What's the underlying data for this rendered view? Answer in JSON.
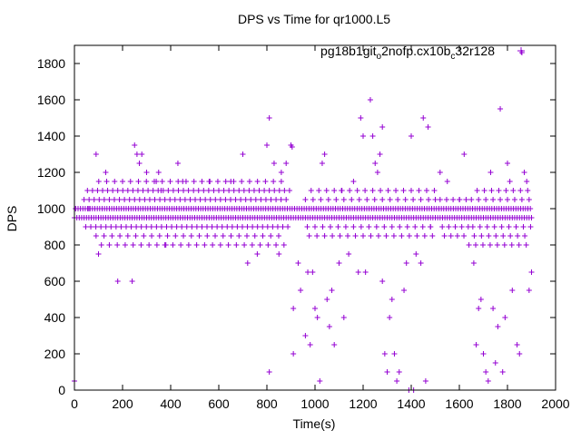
{
  "chart_data": {
    "type": "scatter",
    "title": "DPS vs Time for qr1000.L5",
    "xlabel": "Time(s)",
    "ylabel": "DPS",
    "xlim": [
      0,
      2000
    ],
    "ylim": [
      0,
      1900
    ],
    "x_ticks": [
      0,
      200,
      400,
      600,
      800,
      1000,
      1200,
      1400,
      1600,
      1800,
      2000
    ],
    "y_ticks": [
      0,
      200,
      400,
      600,
      800,
      1000,
      1200,
      1400,
      1600,
      1800
    ],
    "grid": false,
    "legend_position": "top-right",
    "marker": "plus",
    "series": [
      {
        "name": "pg18b1git_o2nofp.cx10b_c32r128",
        "legend_base": "pg18b1git",
        "legend_segments": [
          {
            "text": "o",
            "sub": true
          },
          {
            "text": "2nofp.cx10b",
            "sub": false
          },
          {
            "text": "c",
            "sub": true
          },
          {
            "text": "32r128",
            "sub": false
          }
        ],
        "color": "#9400D3",
        "bands": [
          {
            "x_start": 0,
            "x_end": 1900,
            "step": 5,
            "values": [
              950,
              1000
            ]
          },
          {
            "x_start": 40,
            "x_end": 900,
            "step": 7,
            "values": [
              1050,
              900,
              1100
            ]
          },
          {
            "x_start": 90,
            "x_end": 880,
            "step": 11,
            "values": [
              850,
              1150,
              800
            ]
          },
          {
            "x_start": 960,
            "x_end": 1500,
            "step": 8,
            "values": [
              1050,
              900,
              850,
              1100
            ]
          },
          {
            "x_start": 1520,
            "x_end": 1640,
            "step": 9,
            "values": [
              1050,
              900,
              850
            ]
          },
          {
            "x_start": 1650,
            "x_end": 1900,
            "step": 6,
            "values": [
              1050,
              900,
              850,
              800,
              1100
            ]
          }
        ],
        "points": [
          [
            0,
            50
          ],
          [
            5,
            1000
          ],
          [
            60,
            1000
          ],
          [
            90,
            1300
          ],
          [
            100,
            750
          ],
          [
            130,
            1200
          ],
          [
            180,
            600
          ],
          [
            240,
            600
          ],
          [
            250,
            1350
          ],
          [
            260,
            1300
          ],
          [
            270,
            1250
          ],
          [
            280,
            1300
          ],
          [
            300,
            1200
          ],
          [
            340,
            1150
          ],
          [
            350,
            1200
          ],
          [
            360,
            1100
          ],
          [
            380,
            800
          ],
          [
            430,
            1250
          ],
          [
            450,
            1150
          ],
          [
            560,
            1150
          ],
          [
            650,
            1150
          ],
          [
            700,
            1300
          ],
          [
            720,
            700
          ],
          [
            760,
            750
          ],
          [
            800,
            1350
          ],
          [
            810,
            100
          ],
          [
            810,
            1500
          ],
          [
            830,
            1250
          ],
          [
            850,
            750
          ],
          [
            860,
            1200
          ],
          [
            880,
            1250
          ],
          [
            900,
            1350
          ],
          [
            905,
            1340
          ],
          [
            910,
            450
          ],
          [
            910,
            200
          ],
          [
            930,
            700
          ],
          [
            940,
            550
          ],
          [
            960,
            300
          ],
          [
            970,
            650
          ],
          [
            980,
            250
          ],
          [
            990,
            650
          ],
          [
            1000,
            450
          ],
          [
            1010,
            400
          ],
          [
            1020,
            50
          ],
          [
            1030,
            1250
          ],
          [
            1040,
            1300
          ],
          [
            1050,
            500
          ],
          [
            1060,
            350
          ],
          [
            1070,
            550
          ],
          [
            1080,
            250
          ],
          [
            1100,
            700
          ],
          [
            1110,
            1100
          ],
          [
            1120,
            400
          ],
          [
            1140,
            750
          ],
          [
            1160,
            1150
          ],
          [
            1180,
            650
          ],
          [
            1190,
            1500
          ],
          [
            1200,
            1400
          ],
          [
            1210,
            650
          ],
          [
            1230,
            1600
          ],
          [
            1240,
            1400
          ],
          [
            1250,
            1250
          ],
          [
            1260,
            1200
          ],
          [
            1270,
            1300
          ],
          [
            1280,
            1450
          ],
          [
            1280,
            600
          ],
          [
            1290,
            200
          ],
          [
            1300,
            100
          ],
          [
            1310,
            400
          ],
          [
            1320,
            500
          ],
          [
            1330,
            200
          ],
          [
            1340,
            50
          ],
          [
            1350,
            100
          ],
          [
            1370,
            550
          ],
          [
            1380,
            700
          ],
          [
            1390,
            0
          ],
          [
            1400,
            1400
          ],
          [
            1410,
            0
          ],
          [
            1420,
            750
          ],
          [
            1440,
            700
          ],
          [
            1450,
            1500
          ],
          [
            1460,
            50
          ],
          [
            1470,
            1450
          ],
          [
            1480,
            900
          ],
          [
            1500,
            1050
          ],
          [
            1520,
            1200
          ],
          [
            1550,
            1150
          ],
          [
            1600,
            1050
          ],
          [
            1620,
            1300
          ],
          [
            1640,
            800
          ],
          [
            1660,
            700
          ],
          [
            1670,
            250
          ],
          [
            1680,
            450
          ],
          [
            1690,
            500
          ],
          [
            1700,
            200
          ],
          [
            1710,
            100
          ],
          [
            1720,
            50
          ],
          [
            1730,
            1200
          ],
          [
            1740,
            450
          ],
          [
            1750,
            150
          ],
          [
            1760,
            350
          ],
          [
            1770,
            1550
          ],
          [
            1780,
            100
          ],
          [
            1790,
            400
          ],
          [
            1800,
            1250
          ],
          [
            1810,
            1150
          ],
          [
            1820,
            550
          ],
          [
            1840,
            250
          ],
          [
            1850,
            200
          ],
          [
            1860,
            1860
          ],
          [
            1870,
            1200
          ],
          [
            1880,
            1150
          ],
          [
            1890,
            550
          ],
          [
            1900,
            650
          ]
        ]
      }
    ]
  }
}
